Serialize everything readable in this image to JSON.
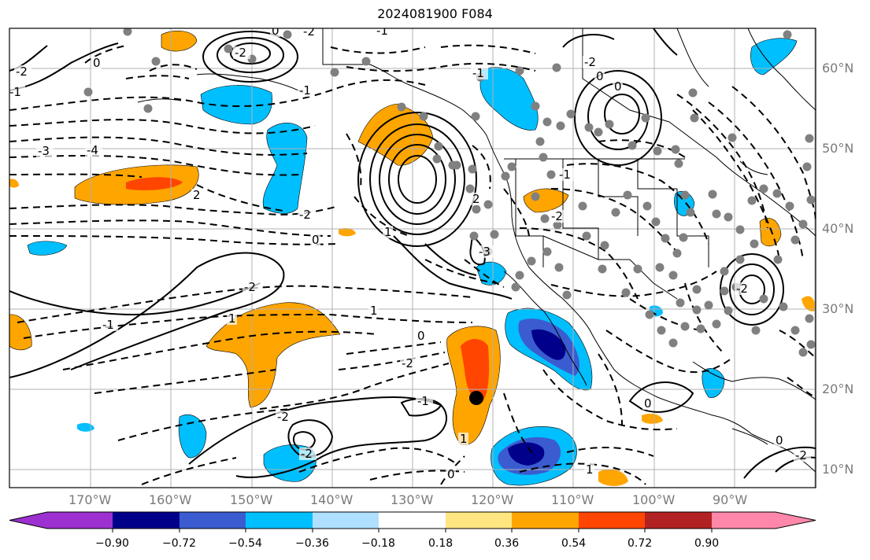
{
  "title": "2024081900 F084",
  "map": {
    "lon_labels": [
      "170°W",
      "160°W",
      "150°W",
      "140°W",
      "130°W",
      "120°W",
      "110°W",
      "100°W",
      "90°W"
    ],
    "lat_labels": [
      "60°N",
      "50°N",
      "40°N",
      "30°N",
      "20°N",
      "10°N"
    ],
    "contour_labels": [
      "-3",
      "-4",
      "-1",
      "-2",
      "0",
      "-1",
      "-2",
      "0",
      "-2",
      "-1",
      "2",
      "-2",
      "0",
      "1",
      "-2",
      "-1",
      "1",
      "0",
      "-2",
      "-1",
      "-1",
      "-2",
      "0",
      "0",
      "1",
      "-2",
      "-1",
      "1",
      "0",
      "-2",
      "-3",
      "2",
      "-2",
      "-2",
      "0",
      "1",
      "0",
      "-2"
    ],
    "colors": {
      "land": "#000000",
      "grid": "#b0b0b0",
      "contour": "#000000",
      "station_dots": "#808080",
      "marker": "#000000"
    }
  },
  "colorbar": {
    "tick_labels": [
      "−0.90",
      "−0.72",
      "−0.54",
      "−0.36",
      "−0.18",
      "0.18",
      "0.36",
      "0.54",
      "0.72",
      "0.90"
    ],
    "colors": [
      "#9c30d0",
      "#00008b",
      "#3a5cd0",
      "#00bfff",
      "#b0e0ff",
      "#ffffff",
      "#ffe680",
      "#ffa500",
      "#ff4500",
      "#b22222",
      "#ff88aa"
    ]
  }
}
